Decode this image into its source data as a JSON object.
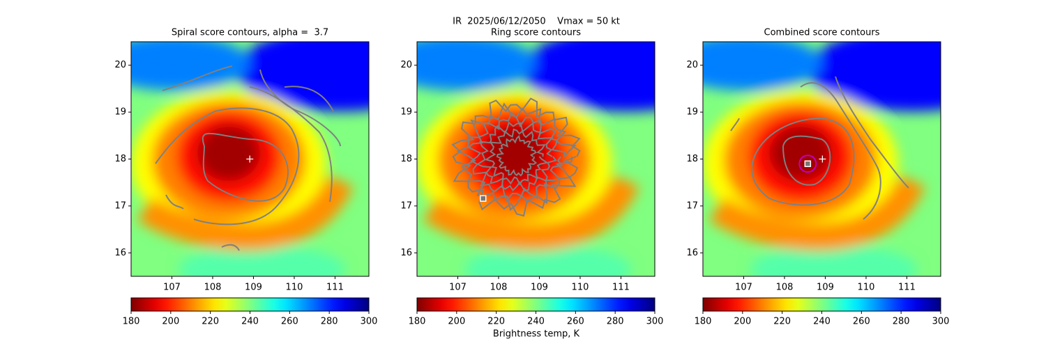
{
  "figure": {
    "title": "IR  2025/06/12/2050    Vmax = 50 kt",
    "colorbar_label": "Brightness temp, K"
  },
  "chart_data": [
    {
      "type": "heatmap",
      "title": "Spiral score contours, alpha =  3.7",
      "colormap": "jet_r",
      "xlim": [
        106.0,
        111.83
      ],
      "ylim": [
        15.5,
        20.5
      ],
      "xticks": [
        107,
        108,
        109,
        110,
        111
      ],
      "yticks": [
        16,
        17,
        18,
        19,
        20
      ],
      "clim": [
        180,
        300
      ],
      "cticks": [
        180,
        200,
        220,
        240,
        260,
        280,
        300
      ],
      "markers": [
        {
          "x": 108.91,
          "y": 18.0,
          "marker": "plus",
          "color": "#ffffff"
        }
      ]
    },
    {
      "type": "heatmap",
      "title": "Ring score contours",
      "colormap": "jet_r",
      "xlim": [
        106.0,
        111.83
      ],
      "ylim": [
        15.5,
        20.5
      ],
      "xticks": [
        107,
        108,
        109,
        110,
        111
      ],
      "yticks": [
        16,
        17,
        18,
        19,
        20
      ],
      "clim": [
        180,
        300
      ],
      "cticks": [
        180,
        200,
        220,
        240,
        260,
        280,
        300
      ],
      "markers": [
        {
          "x": 107.62,
          "y": 17.16,
          "marker": "square",
          "color": "#ffffff"
        }
      ]
    },
    {
      "type": "heatmap",
      "title": "Combined score contours",
      "colormap": "jet_r",
      "xlim": [
        106.0,
        111.83
      ],
      "ylim": [
        15.5,
        20.5
      ],
      "xticks": [
        107,
        108,
        109,
        110,
        111
      ],
      "yticks": [
        16,
        17,
        18,
        19,
        20
      ],
      "clim": [
        180,
        300
      ],
      "cticks": [
        180,
        200,
        220,
        240,
        260,
        280,
        300
      ],
      "markers": [
        {
          "x": 108.57,
          "y": 17.9,
          "marker": "circle",
          "color": "#c000c0"
        },
        {
          "x": 108.57,
          "y": 17.9,
          "marker": "square",
          "color": "#ffffff"
        },
        {
          "x": 108.93,
          "y": 18.0,
          "marker": "plus",
          "color": "#ffffff"
        }
      ]
    }
  ]
}
